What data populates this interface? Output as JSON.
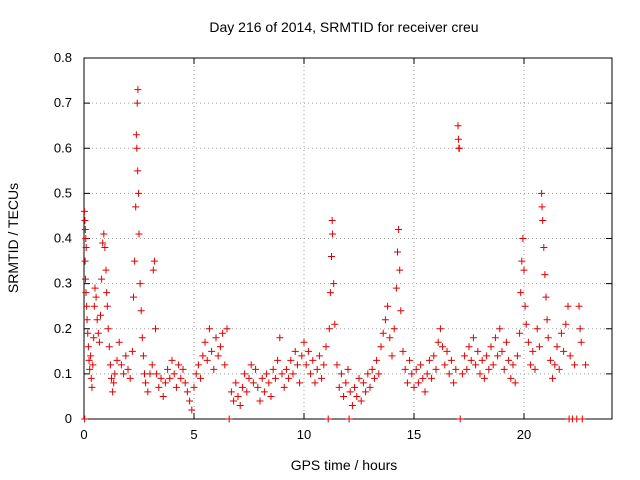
{
  "chart_data": {
    "type": "scatter",
    "title": "Day 216 of 2014, SRMTID for receiver creu",
    "xlabel": "GPS time / hours",
    "ylabel": "SRMTID / TECUs",
    "xlim": [
      0,
      24
    ],
    "ylim": [
      0,
      0.8
    ],
    "x_ticks": [
      0,
      5,
      10,
      15,
      20
    ],
    "y_ticks": [
      0,
      0.1,
      0.2,
      0.3,
      0.4,
      0.5,
      0.6,
      0.7,
      0.8
    ],
    "x_tick_labels": [
      "0",
      "5",
      "10",
      "15",
      "20"
    ],
    "y_tick_labels": [
      "0",
      "0.1",
      "0.2",
      "0.3",
      "0.4",
      "0.5",
      "0.6",
      "0.7",
      "0.8"
    ],
    "grid": true,
    "marker": "+",
    "color": "#e00000",
    "series": [
      {
        "name": "SRMTID",
        "points": [
          [
            0.02,
            0.46
          ],
          [
            0.04,
            0.44
          ],
          [
            0.06,
            0.42
          ],
          [
            0.08,
            0.4
          ],
          [
            0.1,
            0.38
          ],
          [
            0.05,
            0.35
          ],
          [
            0.07,
            0.31
          ],
          [
            0.09,
            0.28
          ],
          [
            0.12,
            0.25
          ],
          [
            0.03,
            0.0
          ],
          [
            0.14,
            0.22
          ],
          [
            0.17,
            0.19
          ],
          [
            0.2,
            0.16
          ],
          [
            0.23,
            0.13
          ],
          [
            0.26,
            0.11
          ],
          [
            0.3,
            0.14
          ],
          [
            0.33,
            0.09
          ],
          [
            0.36,
            0.07
          ],
          [
            0.4,
            0.12
          ],
          [
            0.44,
            0.18
          ],
          [
            0.47,
            0.25
          ],
          [
            0.5,
            0.29
          ],
          [
            0.55,
            0.27
          ],
          [
            0.6,
            0.22
          ],
          [
            0.65,
            0.19
          ],
          [
            0.7,
            0.17
          ],
          [
            0.75,
            0.23
          ],
          [
            0.8,
            0.31
          ],
          [
            0.85,
            0.39
          ],
          [
            0.9,
            0.41
          ],
          [
            0.95,
            0.38
          ],
          [
            1.0,
            0.33
          ],
          [
            1.03,
            0.28
          ],
          [
            1.06,
            0.25
          ],
          [
            1.1,
            0.2
          ],
          [
            1.15,
            0.16
          ],
          [
            1.2,
            0.12
          ],
          [
            1.25,
            0.09
          ],
          [
            1.3,
            0.06
          ],
          [
            1.35,
            0.08
          ],
          [
            1.4,
            0.1
          ],
          [
            1.5,
            0.13
          ],
          [
            1.6,
            0.17
          ],
          [
            1.7,
            0.12
          ],
          [
            1.8,
            0.1
          ],
          [
            1.9,
            0.14
          ],
          [
            2.0,
            0.11
          ],
          [
            2.1,
            0.09
          ],
          [
            2.2,
            0.15
          ],
          [
            2.25,
            0.27
          ],
          [
            2.3,
            0.35
          ],
          [
            2.35,
            0.47
          ],
          [
            2.4,
            0.6
          ],
          [
            2.45,
            0.73
          ],
          [
            2.42,
            0.7
          ],
          [
            2.38,
            0.63
          ],
          [
            2.44,
            0.55
          ],
          [
            2.48,
            0.5
          ],
          [
            2.5,
            0.41
          ],
          [
            2.55,
            0.3
          ],
          [
            2.6,
            0.24
          ],
          [
            2.65,
            0.18
          ],
          [
            2.7,
            0.14
          ],
          [
            2.75,
            0.1
          ],
          [
            2.8,
            0.08
          ],
          [
            2.9,
            0.06
          ],
          [
            3.0,
            0.1
          ],
          [
            3.1,
            0.12
          ],
          [
            3.15,
            0.33
          ],
          [
            3.2,
            0.35
          ],
          [
            3.25,
            0.2
          ],
          [
            3.3,
            0.1
          ],
          [
            3.4,
            0.07
          ],
          [
            3.5,
            0.09
          ],
          [
            3.6,
            0.05
          ],
          [
            3.7,
            0.08
          ],
          [
            3.8,
            0.11
          ],
          [
            3.9,
            0.09
          ],
          [
            4.0,
            0.13
          ],
          [
            4.1,
            0.1
          ],
          [
            4.2,
            0.07
          ],
          [
            4.3,
            0.12
          ],
          [
            4.4,
            0.09
          ],
          [
            4.5,
            0.11
          ],
          [
            4.6,
            0.08
          ],
          [
            4.7,
            0.06
          ],
          [
            4.8,
            0.04
          ],
          [
            4.9,
            0.02
          ],
          [
            5.0,
            0.07
          ],
          [
            5.1,
            0.1
          ],
          [
            5.2,
            0.12
          ],
          [
            5.3,
            0.09
          ],
          [
            5.4,
            0.14
          ],
          [
            5.5,
            0.17
          ],
          [
            5.6,
            0.13
          ],
          [
            5.7,
            0.2
          ],
          [
            5.8,
            0.15
          ],
          [
            5.9,
            0.11
          ],
          [
            6.0,
            0.18
          ],
          [
            6.1,
            0.14
          ],
          [
            6.2,
            0.16
          ],
          [
            6.3,
            0.19
          ],
          [
            6.4,
            0.12
          ],
          [
            6.5,
            0.2
          ],
          [
            6.6,
            0.0
          ],
          [
            6.7,
            0.06
          ],
          [
            6.8,
            0.04
          ],
          [
            6.9,
            0.08
          ],
          [
            7.0,
            0.05
          ],
          [
            7.1,
            0.03
          ],
          [
            7.2,
            0.07
          ],
          [
            7.3,
            0.1
          ],
          [
            7.4,
            0.06
          ],
          [
            7.5,
            0.09
          ],
          [
            7.6,
            0.12
          ],
          [
            7.7,
            0.08
          ],
          [
            7.8,
            0.11
          ],
          [
            7.9,
            0.07
          ],
          [
            8.0,
            0.04
          ],
          [
            8.1,
            0.09
          ],
          [
            8.2,
            0.06
          ],
          [
            8.3,
            0.1
          ],
          [
            8.4,
            0.08
          ],
          [
            8.5,
            0.05
          ],
          [
            8.6,
            0.11
          ],
          [
            8.7,
            0.09
          ],
          [
            8.8,
            0.13
          ],
          [
            8.9,
            0.18
          ],
          [
            9.0,
            0.1
          ],
          [
            9.1,
            0.07
          ],
          [
            9.2,
            0.11
          ],
          [
            9.3,
            0.09
          ],
          [
            9.4,
            0.13
          ],
          [
            9.5,
            0.1
          ],
          [
            9.6,
            0.15
          ],
          [
            9.7,
            0.12
          ],
          [
            9.8,
            0.08
          ],
          [
            9.9,
            0.14
          ],
          [
            10.0,
            0.17
          ],
          [
            10.1,
            0.12
          ],
          [
            10.2,
            0.15
          ],
          [
            10.3,
            0.1
          ],
          [
            10.4,
            0.13
          ],
          [
            10.5,
            0.08
          ],
          [
            10.6,
            0.11
          ],
          [
            10.7,
            0.14
          ],
          [
            10.8,
            0.09
          ],
          [
            10.9,
            0.12
          ],
          [
            11.0,
            0.16
          ],
          [
            11.1,
            0.0
          ],
          [
            11.15,
            0.2
          ],
          [
            11.2,
            0.28
          ],
          [
            11.25,
            0.36
          ],
          [
            11.28,
            0.44
          ],
          [
            11.3,
            0.41
          ],
          [
            11.35,
            0.3
          ],
          [
            11.4,
            0.21
          ],
          [
            11.5,
            0.12
          ],
          [
            11.6,
            0.07
          ],
          [
            11.7,
            0.1
          ],
          [
            11.8,
            0.05
          ],
          [
            11.9,
            0.08
          ],
          [
            12.0,
            0.11
          ],
          [
            12.05,
            0.0
          ],
          [
            12.1,
            0.06
          ],
          [
            12.2,
            0.03
          ],
          [
            12.3,
            0.07
          ],
          [
            12.4,
            0.05
          ],
          [
            12.5,
            0.09
          ],
          [
            12.6,
            0.04
          ],
          [
            12.7,
            0.08
          ],
          [
            12.8,
            0.06
          ],
          [
            12.9,
            0.1
          ],
          [
            13.0,
            0.07
          ],
          [
            13.1,
            0.11
          ],
          [
            13.2,
            0.09
          ],
          [
            13.3,
            0.13
          ],
          [
            13.4,
            0.1
          ],
          [
            13.5,
            0.16
          ],
          [
            13.6,
            0.19
          ],
          [
            13.7,
            0.22
          ],
          [
            13.8,
            0.25
          ],
          [
            13.9,
            0.18
          ],
          [
            14.0,
            0.14
          ],
          [
            14.1,
            0.2
          ],
          [
            14.2,
            0.29
          ],
          [
            14.25,
            0.37
          ],
          [
            14.3,
            0.42
          ],
          [
            14.35,
            0.33
          ],
          [
            14.4,
            0.24
          ],
          [
            14.5,
            0.15
          ],
          [
            14.6,
            0.11
          ],
          [
            14.7,
            0.08
          ],
          [
            14.8,
            0.13
          ],
          [
            14.9,
            0.1
          ],
          [
            15.0,
            0.07
          ],
          [
            15.1,
            0.11
          ],
          [
            15.2,
            0.08
          ],
          [
            15.3,
            0.12
          ],
          [
            15.4,
            0.09
          ],
          [
            15.5,
            0.06
          ],
          [
            15.6,
            0.1
          ],
          [
            15.7,
            0.13
          ],
          [
            15.8,
            0.09
          ],
          [
            15.9,
            0.14
          ],
          [
            16.0,
            0.11
          ],
          [
            16.1,
            0.17
          ],
          [
            16.2,
            0.2
          ],
          [
            16.3,
            0.16
          ],
          [
            16.4,
            0.12
          ],
          [
            16.5,
            0.15
          ],
          [
            16.6,
            0.1
          ],
          [
            16.7,
            0.13
          ],
          [
            16.8,
            0.08
          ],
          [
            16.9,
            0.11
          ],
          [
            17.0,
            0.65
          ],
          [
            17.02,
            0.62
          ],
          [
            17.04,
            0.6
          ],
          [
            17.06,
            0.6
          ],
          [
            17.1,
            0.0
          ],
          [
            17.2,
            0.1
          ],
          [
            17.3,
            0.14
          ],
          [
            17.4,
            0.11
          ],
          [
            17.5,
            0.16
          ],
          [
            17.6,
            0.13
          ],
          [
            17.7,
            0.18
          ],
          [
            17.8,
            0.12
          ],
          [
            17.9,
            0.15
          ],
          [
            18.0,
            0.1
          ],
          [
            18.1,
            0.13
          ],
          [
            18.2,
            0.09
          ],
          [
            18.3,
            0.14
          ],
          [
            18.4,
            0.11
          ],
          [
            18.5,
            0.16
          ],
          [
            18.6,
            0.12
          ],
          [
            18.7,
            0.18
          ],
          [
            18.8,
            0.14
          ],
          [
            18.9,
            0.2
          ],
          [
            19.0,
            0.15
          ],
          [
            19.1,
            0.11
          ],
          [
            19.2,
            0.17
          ],
          [
            19.3,
            0.13
          ],
          [
            19.4,
            0.09
          ],
          [
            19.5,
            0.12
          ],
          [
            19.6,
            0.08
          ],
          [
            19.7,
            0.14
          ],
          [
            19.8,
            0.19
          ],
          [
            19.85,
            0.28
          ],
          [
            19.9,
            0.35
          ],
          [
            19.95,
            0.4
          ],
          [
            20.0,
            0.33
          ],
          [
            20.05,
            0.25
          ],
          [
            20.1,
            0.21
          ],
          [
            20.2,
            0.17
          ],
          [
            20.3,
            0.12
          ],
          [
            20.4,
            0.15
          ],
          [
            20.5,
            0.11
          ],
          [
            20.6,
            0.2
          ],
          [
            20.7,
            0.16
          ],
          [
            20.8,
            0.5
          ],
          [
            20.82,
            0.47
          ],
          [
            20.85,
            0.44
          ],
          [
            20.9,
            0.38
          ],
          [
            20.95,
            0.32
          ],
          [
            21.0,
            0.27
          ],
          [
            21.05,
            0.22
          ],
          [
            21.1,
            0.18
          ],
          [
            21.2,
            0.13
          ],
          [
            21.3,
            0.09
          ],
          [
            21.4,
            0.12
          ],
          [
            21.5,
            0.16
          ],
          [
            21.6,
            0.11
          ],
          [
            21.7,
            0.19
          ],
          [
            21.8,
            0.15
          ],
          [
            21.9,
            0.21
          ],
          [
            22.0,
            0.25
          ],
          [
            22.05,
            0.0
          ],
          [
            22.1,
            0.14
          ],
          [
            22.2,
            0.0
          ],
          [
            22.3,
            0.12
          ],
          [
            22.4,
            0.0
          ],
          [
            22.5,
            0.25
          ],
          [
            22.55,
            0.2
          ],
          [
            22.6,
            0.17
          ],
          [
            22.65,
            0.0
          ],
          [
            22.8,
            0.12
          ]
        ]
      }
    ]
  }
}
